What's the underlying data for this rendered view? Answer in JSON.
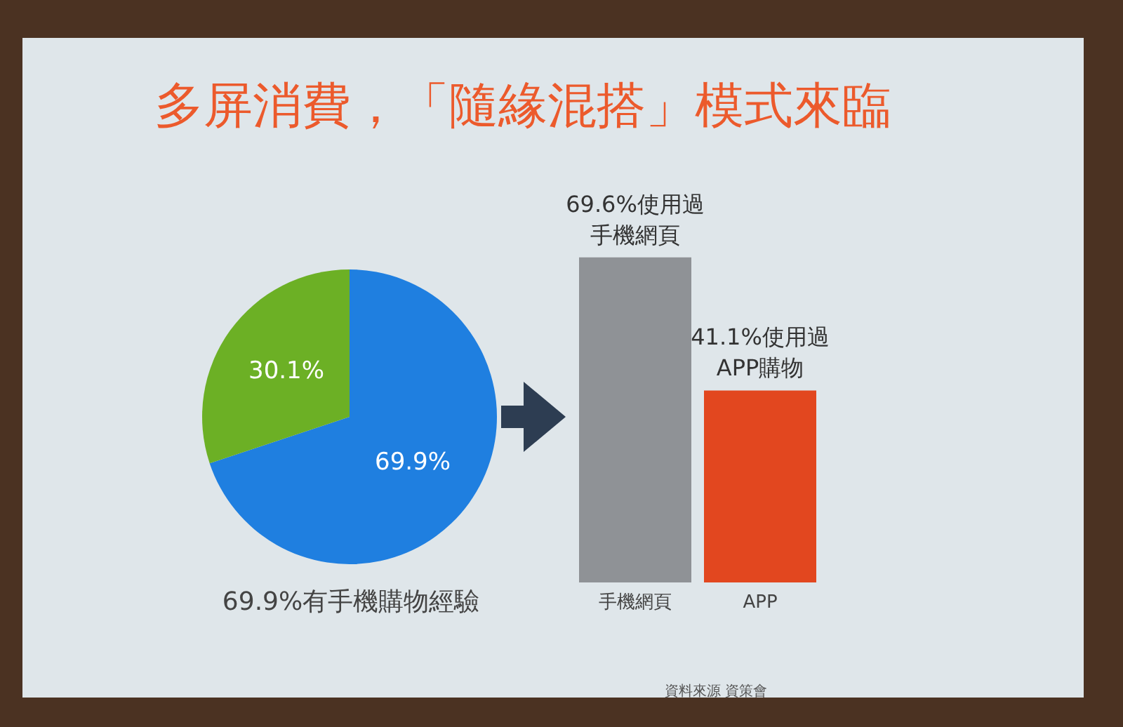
{
  "chart_data": [
    {
      "type": "pie",
      "title": "多屏消費，「隨緣混搭」模式來臨",
      "categories": [
        null,
        null
      ],
      "values": [
        69.9,
        30.1
      ],
      "colors": [
        "#1f7fe0",
        "#6cb025"
      ],
      "value_labels": [
        "69.9%",
        "30.1%"
      ],
      "annotations": [
        "69.9%有手機購物經驗"
      ]
    },
    {
      "type": "bar",
      "categories": [
        "手機網頁",
        "APP"
      ],
      "values": [
        69.6,
        41.1
      ],
      "colors": [
        "#8f9296",
        "#e2471f"
      ],
      "value_labels": [
        "69.6%使用過手機網頁",
        "41.1%使用過APP購物"
      ],
      "annotations": [
        "資料來源 資策會"
      ]
    }
  ]
}
